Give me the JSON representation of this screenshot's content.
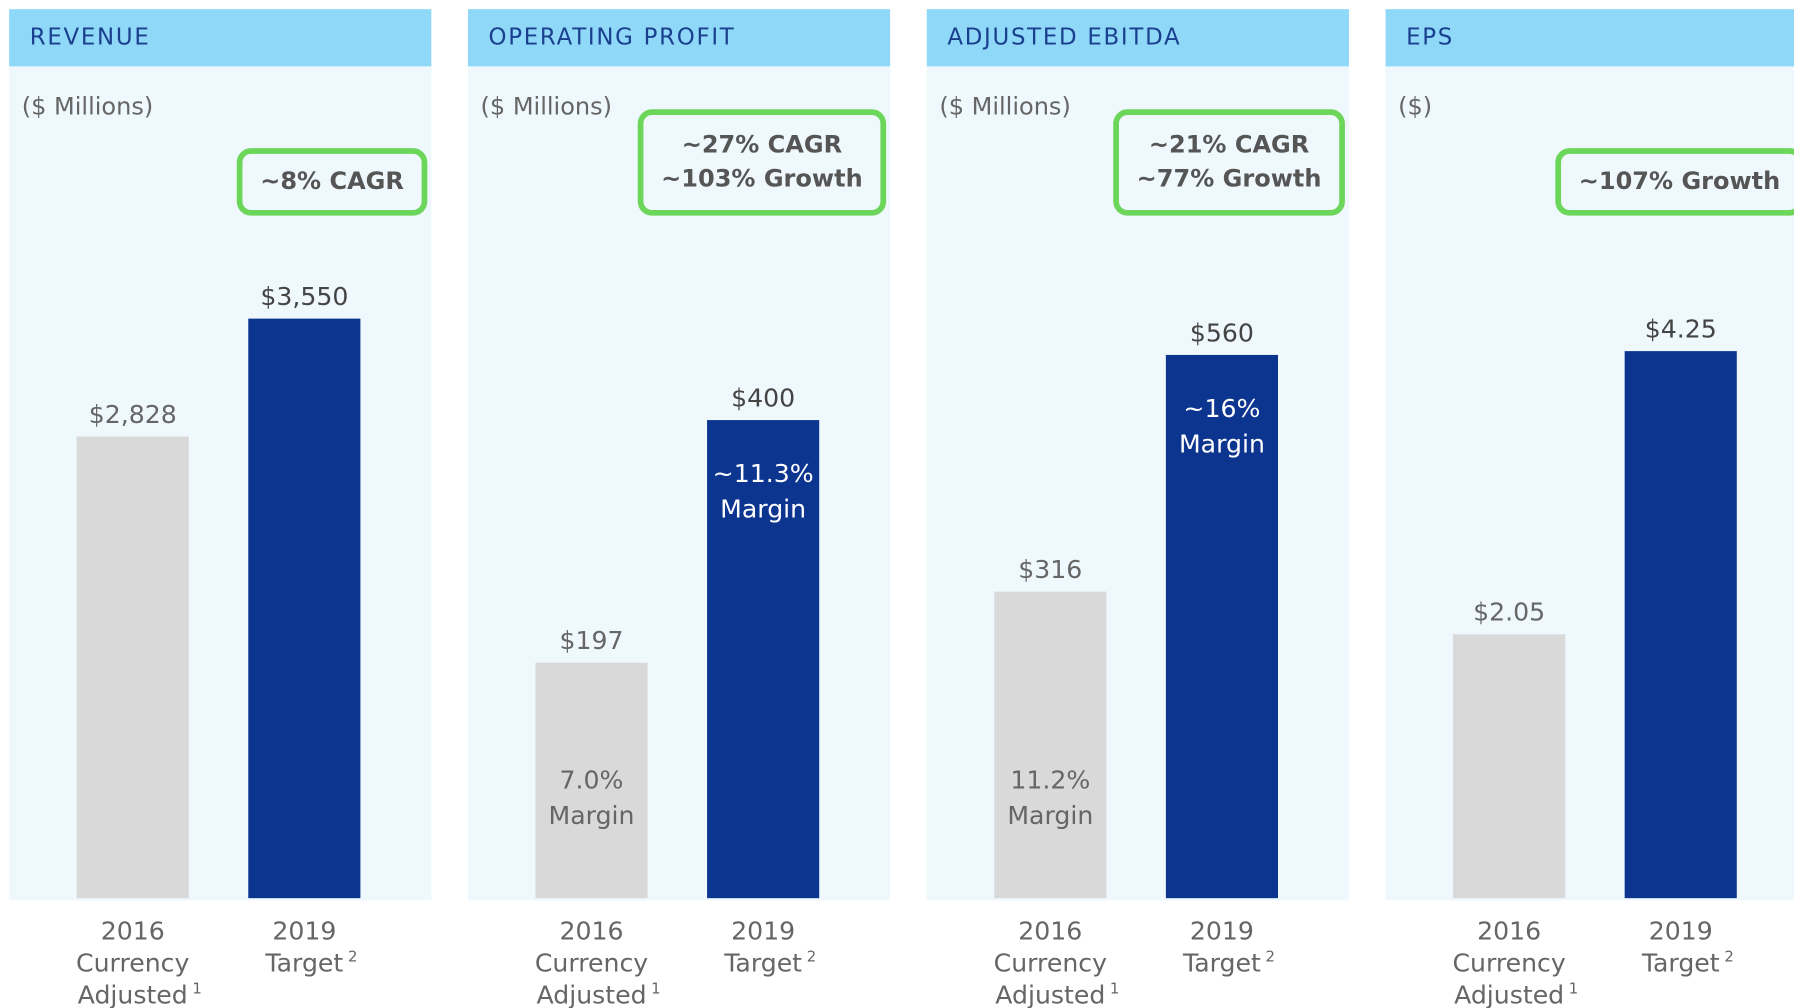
{
  "chart_data": [
    {
      "type": "bar",
      "title": "REVENUE",
      "subtitle": "($ Millions)",
      "annotation": [
        "~8% CAGR"
      ],
      "categories": [
        "2016 Currency Adjusted",
        "2019 Target"
      ],
      "category_notes": [
        "1",
        "2"
      ],
      "values": [
        2828,
        3550
      ],
      "value_labels": [
        "$2,828",
        "$3,550"
      ],
      "colors": [
        "#d9d9d9",
        "#0c3590"
      ],
      "ylim": [
        0,
        4100
      ]
    },
    {
      "type": "bar",
      "title": "OPERATING PROFIT",
      "subtitle": "($ Millions)",
      "annotation": [
        "~27% CAGR",
        "~103% Growth"
      ],
      "categories": [
        "2016 Currency Adjusted",
        "2019 Target"
      ],
      "category_notes": [
        "1",
        "2"
      ],
      "values": [
        197,
        400
      ],
      "value_labels": [
        "$197",
        "$400"
      ],
      "bar_notes": [
        "7.0% Margin",
        "~11.3% Margin"
      ],
      "colors": [
        "#d9d9d9",
        "#0c3590"
      ],
      "ylim": [
        0,
        560
      ]
    },
    {
      "type": "bar",
      "title": "ADJUSTED EBITDA",
      "subtitle": "($ Millions)",
      "annotation": [
        "~21% CAGR",
        "~77% Growth"
      ],
      "categories": [
        "2016 Currency Adjusted",
        "2019 Target"
      ],
      "category_notes": [
        "1",
        "2"
      ],
      "values": [
        316,
        560
      ],
      "value_labels": [
        "$316",
        "$560"
      ],
      "bar_notes": [
        "11.2% Margin",
        "~16% Margin"
      ],
      "colors": [
        "#d9d9d9",
        "#0c3590"
      ],
      "ylim": [
        0,
        690
      ]
    },
    {
      "type": "bar",
      "title": "EPS",
      "subtitle": "($)",
      "annotation": [
        "~107% Growth"
      ],
      "categories": [
        "2016 Currency Adjusted",
        "2019 Target"
      ],
      "category_notes": [
        "1",
        "2"
      ],
      "values": [
        2.05,
        4.25
      ],
      "value_labels": [
        "$2.05",
        "$4.25"
      ],
      "colors": [
        "#d9d9d9",
        "#0c3590"
      ],
      "ylim": [
        0,
        5.2
      ]
    }
  ]
}
